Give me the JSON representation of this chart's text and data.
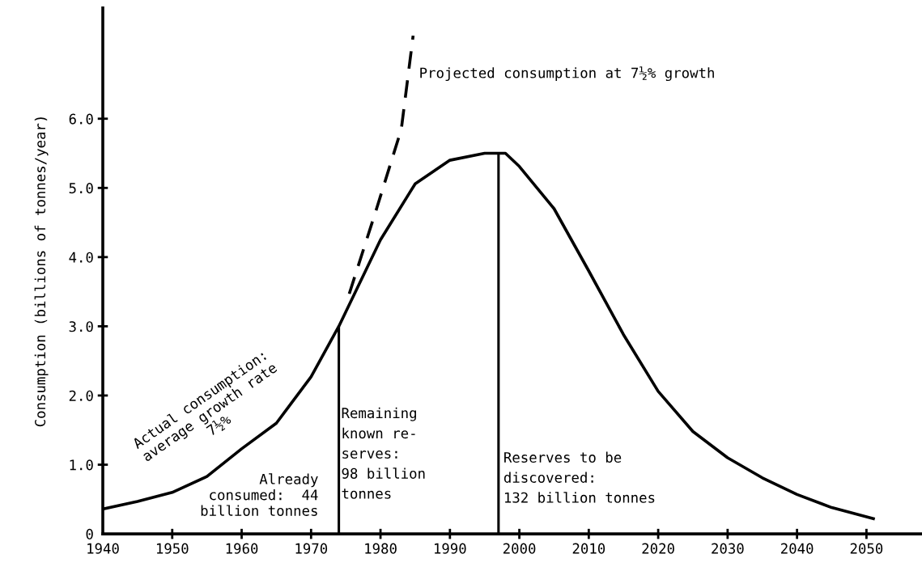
{
  "chart_data": {
    "type": "line",
    "ylabel": "Consumption (billions of tonnes/year)",
    "xlim": [
      1940,
      2058
    ],
    "ylim": [
      0,
      7.6
    ],
    "xticks": [
      1940,
      1950,
      1960,
      1970,
      1980,
      1990,
      2000,
      2010,
      2020,
      2030,
      2040,
      2050
    ],
    "yticks": [
      {
        "value": 0,
        "label": "0"
      },
      {
        "value": 1,
        "label": "1.0"
      },
      {
        "value": 2,
        "label": "2.0"
      },
      {
        "value": 3,
        "label": "3.0"
      },
      {
        "value": 4,
        "label": "4.0"
      },
      {
        "value": 5,
        "label": "5.0"
      },
      {
        "value": 6,
        "label": "6.0"
      }
    ],
    "grid": false,
    "marker": "none",
    "series": [
      {
        "color": "#000000",
        "line_style": "solid",
        "x": [
          1940,
          1945,
          1950,
          1955,
          1960,
          1965,
          1970,
          1974,
          1980,
          1985,
          1990,
          1995,
          1997,
          1998,
          2000,
          2005,
          2010,
          2015,
          2020,
          2025,
          2030,
          2035,
          2040,
          2045,
          2051
        ],
        "values": [
          0.36,
          0.47,
          0.6,
          0.83,
          1.23,
          1.6,
          2.27,
          3.0,
          4.25,
          5.06,
          5.4,
          5.5,
          5.5,
          5.5,
          5.31,
          4.7,
          3.8,
          2.88,
          2.06,
          1.48,
          1.1,
          0.81,
          0.57,
          0.38,
          0.22
        ]
      },
      {
        "color": "#000000",
        "line_style": "dashed",
        "x": [
          1975.5,
          1979.5,
          1983,
          1984.7
        ],
        "values": [
          3.47,
          4.72,
          5.85,
          7.2
        ]
      }
    ],
    "ref_lines": [
      {
        "axis": "x",
        "value": 1974,
        "color": "#000000"
      },
      {
        "axis": "x",
        "value": 1997,
        "color": "#000000"
      }
    ],
    "annotations": [
      "Projected consumption at 7½% growth",
      "Actual consumption:\naverage growth rate\n7½%",
      "Already\nconsumed:  44\nbillion tonnes",
      "Remaining\nknown re-\nserves:\n98 billion\ntonnes",
      "Reserves to be\ndiscovered:\n132 billion tonnes"
    ]
  }
}
